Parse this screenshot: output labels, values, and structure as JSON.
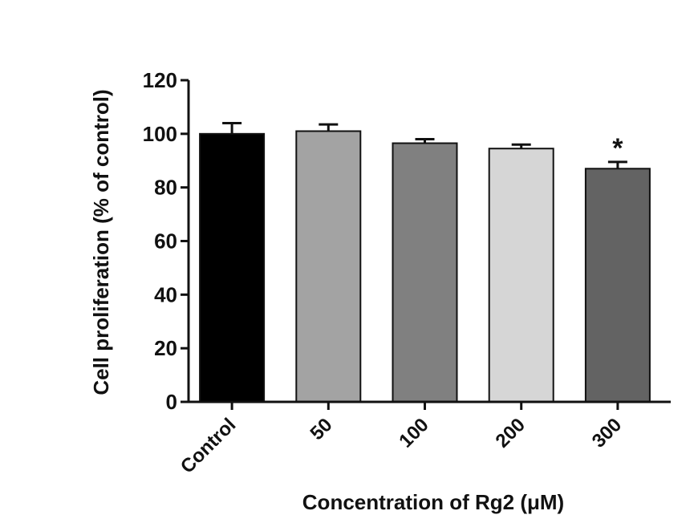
{
  "chart_data": {
    "type": "bar",
    "categories": [
      "Control",
      "50",
      "100",
      "200",
      "300"
    ],
    "values": [
      100,
      101,
      96.5,
      94.5,
      87
    ],
    "errors": [
      4,
      2.5,
      1.5,
      1.5,
      2.5
    ],
    "colors": [
      "#000000",
      "#a3a3a3",
      "#808080",
      "#d6d6d6",
      "#636363"
    ],
    "significance": [
      "",
      "",
      "",
      "",
      "*"
    ],
    "xlabel": "Concentration of Rg2 (μM)",
    "ylabel": "Cell proliferation (% of control)",
    "ylim": [
      0,
      120
    ],
    "yticks": [
      "0",
      "20",
      "40",
      "60",
      "80",
      "100",
      "120"
    ],
    "grid": false
  }
}
